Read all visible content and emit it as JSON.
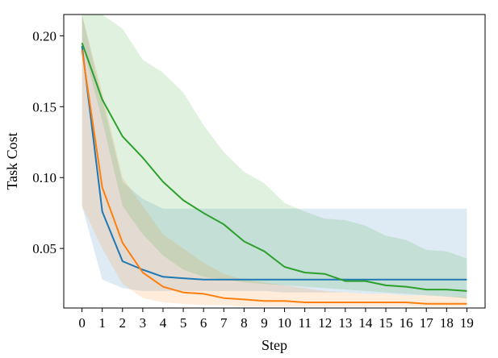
{
  "chart_data": {
    "type": "line",
    "xlabel": "Step",
    "ylabel": "Task Cost",
    "xlim": [
      -0.9,
      19.9
    ],
    "ylim": [
      0.008,
      0.215
    ],
    "x": [
      0,
      1,
      2,
      3,
      4,
      5,
      6,
      7,
      8,
      9,
      10,
      11,
      12,
      13,
      14,
      15,
      16,
      17,
      18,
      19
    ],
    "xticks": [
      "0",
      "1",
      "2",
      "3",
      "4",
      "5",
      "6",
      "7",
      "8",
      "9",
      "10",
      "11",
      "12",
      "13",
      "14",
      "15",
      "16",
      "17",
      "18",
      "19"
    ],
    "yticks": [
      {
        "value": 0.05,
        "label": "0.05"
      },
      {
        "value": 0.1,
        "label": "0.10"
      },
      {
        "value": 0.15,
        "label": "0.15"
      },
      {
        "value": 0.2,
        "label": "0.20"
      }
    ],
    "grid": false,
    "series": [
      {
        "color": "#1f77b4",
        "values": [
          0.193,
          0.076,
          0.041,
          0.035,
          0.03,
          0.029,
          0.028,
          0.028,
          0.028,
          0.028,
          0.028,
          0.028,
          0.028,
          0.028,
          0.028,
          0.028,
          0.028,
          0.028,
          0.028,
          0.028
        ],
        "upper": [
          0.215,
          0.155,
          0.097,
          0.085,
          0.078,
          0.078,
          0.078,
          0.078,
          0.078,
          0.078,
          0.078,
          0.078,
          0.078,
          0.078,
          0.078,
          0.078,
          0.078,
          0.078,
          0.078,
          0.078
        ],
        "lower": [
          0.08,
          0.028,
          0.022,
          0.02,
          0.02,
          0.02,
          0.02,
          0.02,
          0.02,
          0.02,
          0.019,
          0.019,
          0.019,
          0.019,
          0.018,
          0.018,
          0.017,
          0.017,
          0.016,
          0.015
        ]
      },
      {
        "color": "#ff7f0e",
        "values": [
          0.19,
          0.093,
          0.054,
          0.033,
          0.023,
          0.019,
          0.018,
          0.015,
          0.014,
          0.013,
          0.013,
          0.012,
          0.012,
          0.012,
          0.012,
          0.012,
          0.012,
          0.011,
          0.011,
          0.011
        ],
        "upper": [
          0.215,
          0.16,
          0.1,
          0.08,
          0.06,
          0.05,
          0.04,
          0.032,
          0.028,
          0.026,
          0.024,
          0.022,
          0.02,
          0.019,
          0.018,
          0.018,
          0.017,
          0.017,
          0.016,
          0.016
        ],
        "lower": [
          0.08,
          0.05,
          0.025,
          0.015,
          0.012,
          0.011,
          0.01,
          0.01,
          0.009,
          0.009,
          0.009,
          0.009,
          0.009,
          0.009,
          0.009,
          0.009,
          0.009,
          0.009,
          0.009,
          0.009
        ]
      },
      {
        "color": "#2ca02c",
        "values": [
          0.195,
          0.155,
          0.129,
          0.114,
          0.097,
          0.084,
          0.075,
          0.067,
          0.055,
          0.048,
          0.037,
          0.033,
          0.032,
          0.027,
          0.027,
          0.024,
          0.023,
          0.021,
          0.021,
          0.02
        ],
        "upper": [
          0.215,
          0.215,
          0.205,
          0.183,
          0.174,
          0.16,
          0.137,
          0.118,
          0.104,
          0.096,
          0.082,
          0.076,
          0.071,
          0.07,
          0.066,
          0.059,
          0.056,
          0.049,
          0.048,
          0.043
        ],
        "lower": [
          0.195,
          0.14,
          0.08,
          0.06,
          0.045,
          0.035,
          0.03,
          0.028,
          0.026,
          0.025,
          0.024,
          0.023,
          0.022,
          0.021,
          0.02,
          0.019,
          0.018,
          0.017,
          0.016,
          0.015
        ]
      }
    ]
  }
}
